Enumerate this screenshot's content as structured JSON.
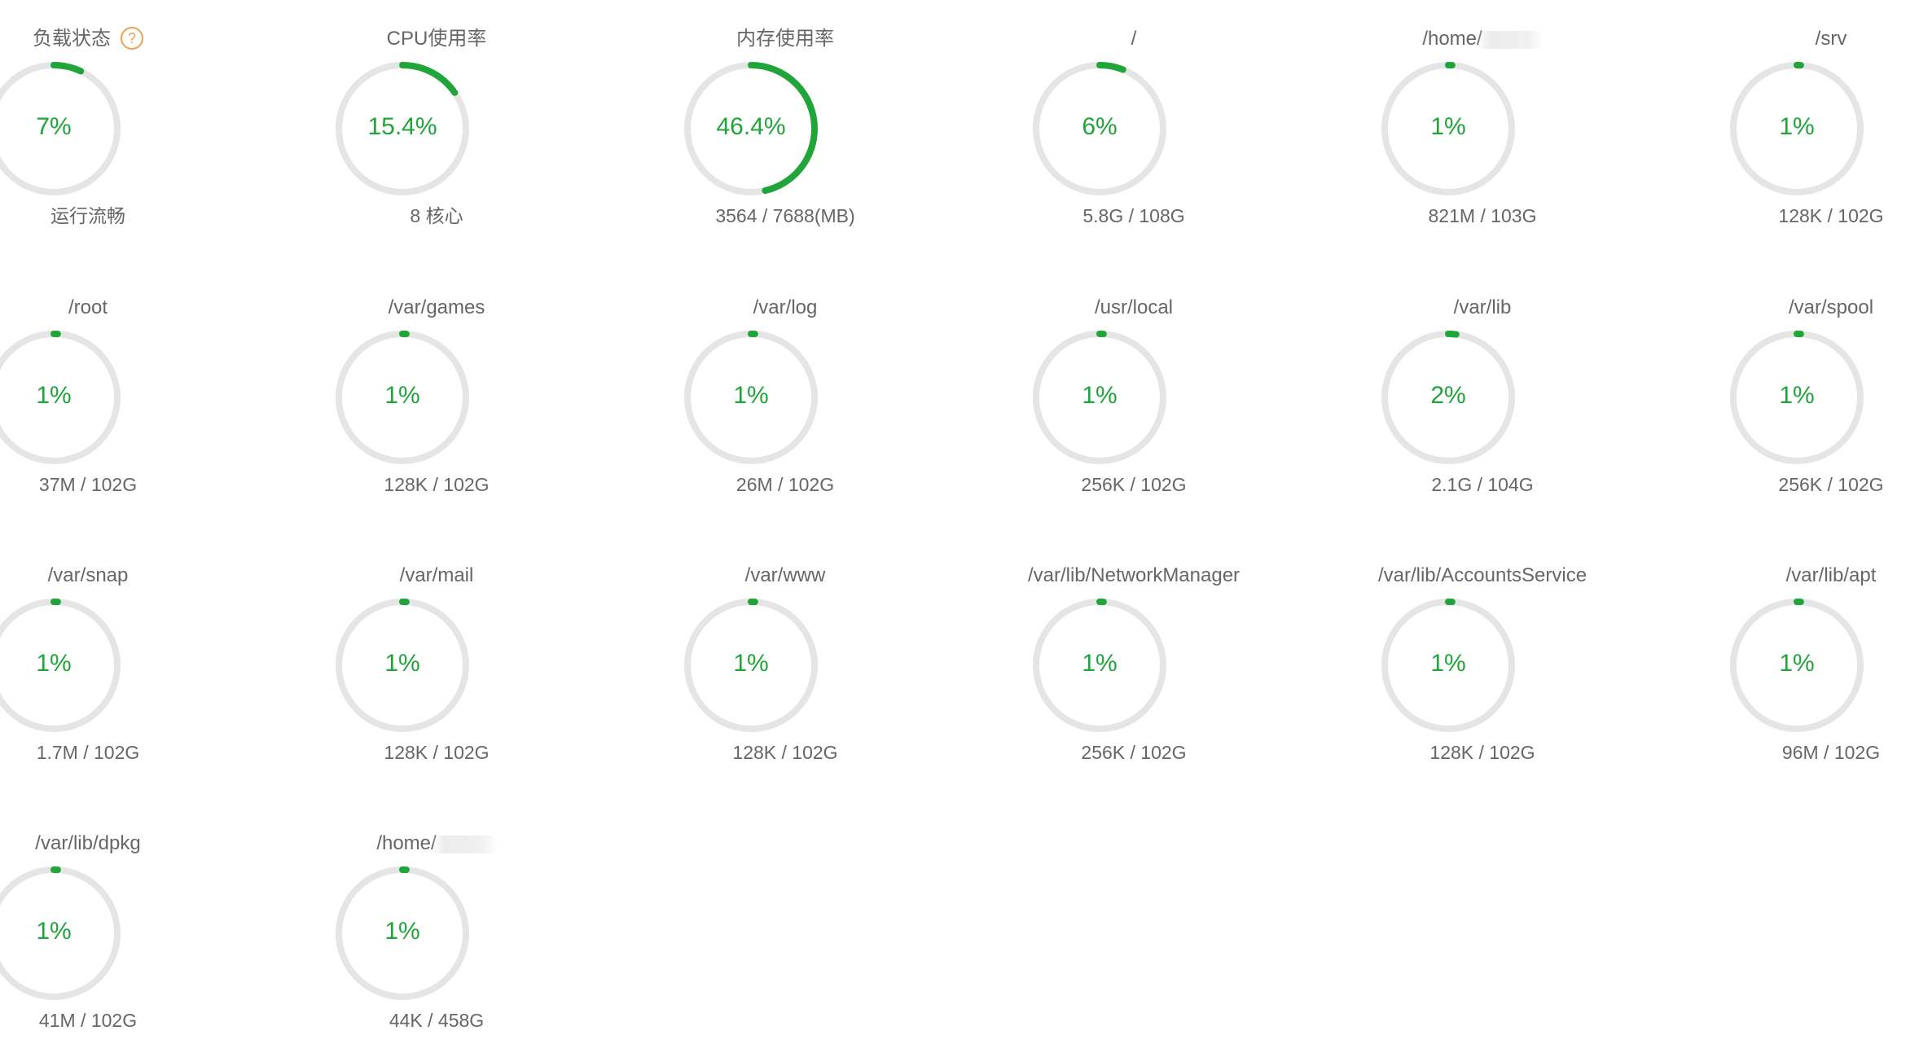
{
  "colors": {
    "accent": "#20a53a",
    "track": "#e5e5e5",
    "help": "#f0a050",
    "label": "#666666"
  },
  "gauges": [
    {
      "title": "负载状态",
      "help": "?",
      "pct_label": "7%",
      "pct": 7,
      "sub": "运行流畅"
    },
    {
      "title": "CPU使用率",
      "pct_label": "15.4%",
      "pct": 15.4,
      "sub": "8 核心"
    },
    {
      "title": "内存使用率",
      "pct_label": "46.4%",
      "pct": 46.4,
      "sub": "3564 / 7688(MB)"
    },
    {
      "title": "/",
      "pct_label": "6%",
      "pct": 6,
      "sub": "5.8G / 108G"
    },
    {
      "title": "/home/",
      "redacted": true,
      "pct_label": "1%",
      "pct": 1,
      "sub": "821M / 103G"
    },
    {
      "title": "/srv",
      "pct_label": "1%",
      "pct": 1,
      "sub": "128K / 102G"
    },
    {
      "title": "/root",
      "pct_label": "1%",
      "pct": 1,
      "sub": "37M / 102G"
    },
    {
      "title": "/var/games",
      "pct_label": "1%",
      "pct": 1,
      "sub": "128K / 102G"
    },
    {
      "title": "/var/log",
      "pct_label": "1%",
      "pct": 1,
      "sub": "26M / 102G"
    },
    {
      "title": "/usr/local",
      "pct_label": "1%",
      "pct": 1,
      "sub": "256K / 102G"
    },
    {
      "title": "/var/lib",
      "pct_label": "2%",
      "pct": 2,
      "sub": "2.1G / 104G"
    },
    {
      "title": "/var/spool",
      "pct_label": "1%",
      "pct": 1,
      "sub": "256K / 102G"
    },
    {
      "title": "/var/snap",
      "pct_label": "1%",
      "pct": 1,
      "sub": "1.7M / 102G"
    },
    {
      "title": "/var/mail",
      "pct_label": "1%",
      "pct": 1,
      "sub": "128K / 102G"
    },
    {
      "title": "/var/www",
      "pct_label": "1%",
      "pct": 1,
      "sub": "128K / 102G"
    },
    {
      "title": "/var/lib/NetworkManager",
      "pct_label": "1%",
      "pct": 1,
      "sub": "256K / 102G"
    },
    {
      "title": "/var/lib/AccountsService",
      "pct_label": "1%",
      "pct": 1,
      "sub": "128K / 102G"
    },
    {
      "title": "/var/lib/apt",
      "pct_label": "1%",
      "pct": 1,
      "sub": "96M / 102G"
    },
    {
      "title": "/var/lib/dpkg",
      "pct_label": "1%",
      "pct": 1,
      "sub": "41M / 102G"
    },
    {
      "title": "/home/",
      "redacted": true,
      "pct_label": "1%",
      "pct": 1,
      "sub": "44K / 458G"
    }
  ]
}
